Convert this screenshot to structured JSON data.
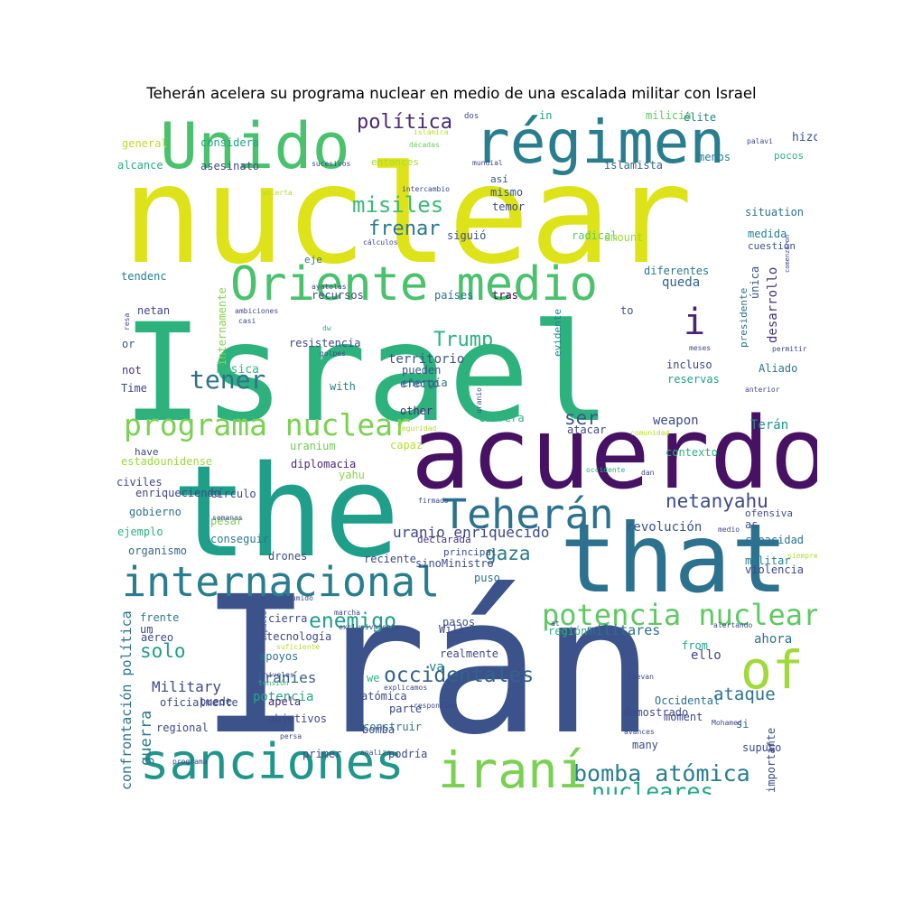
{
  "title": "Teherán acelera su programa nuclear en medio de una escalada militar con Israel",
  "words": [
    {
      "text": "nuclear",
      "color": "#dde318"
    },
    {
      "text": "Israel",
      "color": "#2db27d"
    },
    {
      "text": "Irán",
      "color": "#3b528b"
    },
    {
      "text": "the",
      "color": "#1f9e89"
    },
    {
      "text": "acuerdo",
      "color": "#471164"
    },
    {
      "text": "that",
      "color": "#2c728e"
    },
    {
      "text": "Unido",
      "color": "#4ac16d"
    },
    {
      "text": "régimen",
      "color": "#287d8e"
    },
    {
      "text": "Oriente medio",
      "color": "#4ac16d"
    },
    {
      "text": "sanciones",
      "color": "#1f968b"
    },
    {
      "text": "internacional",
      "color": "#287d8e"
    },
    {
      "text": "iraní",
      "color": "#7ad151"
    },
    {
      "text": "of",
      "color": "#a0da39"
    },
    {
      "text": "programa nuclear",
      "color": "#7ad151"
    },
    {
      "text": "Teherán",
      "color": "#2c728e"
    },
    {
      "text": "potencia nuclear",
      "color": "#5ec962"
    },
    {
      "text": "bomba atómica",
      "color": "#287d8e"
    },
    {
      "text": "nucleares",
      "color": "#21a685"
    },
    {
      "text": "occidentales",
      "color": "#33638d"
    },
    {
      "text": "netanyahu",
      "color": "#3e4a89"
    },
    {
      "text": "política",
      "color": "#482878"
    },
    {
      "text": "misiles",
      "color": "#3aba76"
    },
    {
      "text": "frenar",
      "color": "#2a788e"
    },
    {
      "text": "tener",
      "color": "#2c728e"
    },
    {
      "text": "enemigo",
      "color": "#1f9e89"
    },
    {
      "text": "gaza",
      "color": "#2a788e"
    },
    {
      "text": "ser",
      "color": "#38588c"
    },
    {
      "text": "Trump",
      "color": "#2db27d"
    },
    {
      "text": "solo",
      "color": "#1f9e89"
    },
    {
      "text": "guerra",
      "color": "#2a788e"
    },
    {
      "text": "ataque",
      "color": "#2c728e"
    },
    {
      "text": "uranio enriquecido",
      "color": "#3f4788"
    },
    {
      "text": "i",
      "color": "#482475"
    },
    {
      "text": "territorio",
      "color": "#3b528b"
    },
    {
      "text": "Military",
      "color": "#3e4a89"
    },
    {
      "text": "iraníes",
      "color": "#33638d"
    },
    {
      "text": "potencia",
      "color": "#22a884"
    },
    {
      "text": "confrontación política",
      "color": "#2c728e"
    },
    {
      "text": "revolución",
      "color": "#3b528b"
    },
    {
      "text": "militares",
      "color": "#2d708e"
    },
    {
      "text": "weapon",
      "color": "#3e4a89"
    },
    {
      "text": "va",
      "color": "#25838e"
    },
    {
      "text": "ello",
      "color": "#3e4989"
    },
    {
      "text": "ahora",
      "color": "#2c728e"
    },
    {
      "text": "Terán",
      "color": "#20928c"
    },
    {
      "text": "queda",
      "color": "#33628d"
    },
    {
      "text": "desarrollo",
      "color": "#46337e"
    },
    {
      "text": "internamente",
      "color": "#86d549"
    },
    {
      "text": "Música",
      "color": "#35b779"
    },
    {
      "text": "energía",
      "color": "#2c728e"
    },
    {
      "text": "resistencia",
      "color": "#3e4989"
    },
    {
      "text": "Aliado",
      "color": "#2a788e"
    },
    {
      "text": "recursos",
      "color": "#3e4989"
    },
    {
      "text": "países",
      "color": "#2c728e"
    },
    {
      "text": "tras",
      "color": "#440154"
    },
    {
      "text": "diferentes",
      "color": "#2a788e"
    },
    {
      "text": "menos",
      "color": "#277f8e"
    },
    {
      "text": "hizo",
      "color": "#3b528b"
    },
    {
      "text": "in",
      "color": "#1fa188"
    },
    {
      "text": "milicia",
      "color": "#5ec962"
    },
    {
      "text": "élite",
      "color": "#26828e"
    },
    {
      "text": "considera",
      "color": "#20a386"
    },
    {
      "text": "islamista",
      "color": "#31688e"
    },
    {
      "text": "asesinato",
      "color": "#3e4989"
    },
    {
      "text": "situation",
      "color": "#2c728e"
    },
    {
      "text": "medida",
      "color": "#26828e"
    },
    {
      "text": "cuestión",
      "color": "#3b528b"
    },
    {
      "text": "única",
      "color": "#3b528b"
    },
    {
      "text": "general",
      "color": "#b5de2b"
    },
    {
      "text": "alcance",
      "color": "#29af7f"
    },
    {
      "text": "pocos",
      "color": "#2db27d"
    },
    {
      "text": "entonces",
      "color": "#a5db36"
    },
    {
      "text": "mismo",
      "color": "#38588c"
    },
    {
      "text": "temor",
      "color": "#3e4a89"
    },
    {
      "text": "así",
      "color": "#3b528b"
    },
    {
      "text": "siguió",
      "color": "#3b528b"
    },
    {
      "text": "radical",
      "color": "#5ec962"
    },
    {
      "text": "amount",
      "color": "#9bd93c"
    },
    {
      "text": "eje",
      "color": "#2a788e"
    },
    {
      "text": "tendenc",
      "color": "#277f8e"
    },
    {
      "text": "netan",
      "color": "#3e4989"
    },
    {
      "text": "or",
      "color": "#3b528b"
    },
    {
      "text": "not",
      "color": "#46337e"
    },
    {
      "text": "Time",
      "color": "#3e4a89"
    },
    {
      "text": "with",
      "color": "#26828e"
    },
    {
      "text": "pueden",
      "color": "#3b528b"
    },
    {
      "text": "efecto",
      "color": "#38588c"
    },
    {
      "text": "other",
      "color": "#482878"
    },
    {
      "text": "carrera",
      "color": "#2db27d"
    },
    {
      "text": "atacar",
      "color": "#3e4989"
    },
    {
      "text": "incluso",
      "color": "#3e4989"
    },
    {
      "text": "reservas",
      "color": "#1fa187"
    },
    {
      "text": "to",
      "color": "#3b528b"
    },
    {
      "text": "evidente",
      "color": "#26828e"
    },
    {
      "text": "presidente",
      "color": "#2c728e"
    },
    {
      "text": "have",
      "color": "#3e4989"
    },
    {
      "text": "uranium",
      "color": "#6ccd5a"
    },
    {
      "text": "capaz",
      "color": "#b5de2b"
    },
    {
      "text": "estadounidense",
      "color": "#9bd93c"
    },
    {
      "text": "diplomacia",
      "color": "#482878"
    },
    {
      "text": "yahu",
      "color": "#8bd646"
    },
    {
      "text": "civiles",
      "color": "#3e4989"
    },
    {
      "text": "enriqueciendo",
      "color": "#3e4989"
    },
    {
      "text": "círculo",
      "color": "#3e4a89"
    },
    {
      "text": "gobierno",
      "color": "#2c728e"
    },
    {
      "text": "pesar",
      "color": "#7ad151"
    },
    {
      "text": "ejemplo",
      "color": "#2db27d"
    },
    {
      "text": "conseguir",
      "color": "#2a788e"
    },
    {
      "text": "organismo",
      "color": "#31688e"
    },
    {
      "text": "drones",
      "color": "#3e4989"
    },
    {
      "text": "principal",
      "color": "#3b528b"
    },
    {
      "text": "declarada",
      "color": "#46337e"
    },
    {
      "text": "reciente",
      "color": "#3e4989"
    },
    {
      "text": "sinoMinistro",
      "color": "#3e4989"
    },
    {
      "text": "puso",
      "color": "#2c728e"
    },
    {
      "text": "violencia",
      "color": "#3f4788"
    },
    {
      "text": "militar",
      "color": "#26828e"
    },
    {
      "text": "as",
      "color": "#3b528b"
    },
    {
      "text": "ofensiva",
      "color": "#3b528b"
    },
    {
      "text": "capacidad",
      "color": "#2c728e"
    },
    {
      "text": "contexto",
      "color": "#2db27d"
    },
    {
      "text": "frente",
      "color": "#2a788e"
    },
    {
      "text": "um",
      "color": "#3e4989"
    },
    {
      "text": "cierra",
      "color": "#3e4989"
    },
    {
      "text": "tecnología",
      "color": "#3e4989"
    },
    {
      "text": "Will",
      "color": "#3e4989"
    },
    {
      "text": "pasos",
      "color": "#3b528b"
    },
    {
      "text": "realmente",
      "color": "#3e4989"
    },
    {
      "text": "región",
      "color": "#2db27d"
    },
    {
      "text": "from",
      "color": "#20a386"
    },
    {
      "text": "aéreo",
      "color": "#3e4989"
    },
    {
      "text": "apoyos",
      "color": "#2c728e"
    },
    {
      "text": "oficialmente",
      "color": "#3e4989"
    },
    {
      "text": "puede",
      "color": "#3e4989"
    },
    {
      "text": "regional",
      "color": "#3e4989"
    },
    {
      "text": "apela",
      "color": "#482878"
    },
    {
      "text": "objetivos",
      "color": "#3e4989"
    },
    {
      "text": "we",
      "color": "#2db27d"
    },
    {
      "text": "atómica",
      "color": "#3e4989"
    },
    {
      "text": "bomba",
      "color": "#3e4989"
    },
    {
      "text": "parte",
      "color": "#3e4989"
    },
    {
      "text": "construir",
      "color": "#2c728e"
    },
    {
      "text": "primer",
      "color": "#3e4989"
    },
    {
      "text": "podría",
      "color": "#3e4989"
    },
    {
      "text": "Occidental",
      "color": "#2c728e"
    },
    {
      "text": "demostrado",
      "color": "#3e4989"
    },
    {
      "text": "moment",
      "color": "#3e4989"
    },
    {
      "text": "many",
      "color": "#3e4989"
    },
    {
      "text": "si",
      "color": "#2c728e"
    },
    {
      "text": "supuso",
      "color": "#3e4989"
    },
    {
      "text": "importante",
      "color": "#3e4989"
    },
    {
      "text": "if",
      "color": "#3e4989"
    },
    {
      "text": "dos",
      "color": "#3e4989"
    },
    {
      "text": "islámica",
      "color": "#b5de2b"
    },
    {
      "text": "décadas",
      "color": "#6ccd5a"
    },
    {
      "text": "mundial",
      "color": "#3e4989"
    },
    {
      "text": "sucesivos",
      "color": "#3e4989"
    },
    {
      "text": "intercambio",
      "color": "#3e4989"
    },
    {
      "text": "abierta",
      "color": "#b5de2b"
    },
    {
      "text": "cálculos",
      "color": "#3e4989"
    },
    {
      "text": "palavi",
      "color": "#3e4989"
    },
    {
      "text": "comenzaron",
      "color": "#3e4989"
    },
    {
      "text": "ayatolas",
      "color": "#3e4989"
    },
    {
      "text": "ambiciones",
      "color": "#3e4989"
    },
    {
      "text": "casi",
      "color": "#3e4989"
    },
    {
      "text": "resa",
      "color": "#3e4989"
    },
    {
      "text": "dw",
      "color": "#2db27d"
    },
    {
      "text": "golpes",
      "color": "#3e4989"
    },
    {
      "text": "meses",
      "color": "#3e4989"
    },
    {
      "text": "permitir",
      "color": "#3e4989"
    },
    {
      "text": "anterior",
      "color": "#3e4989"
    },
    {
      "text": "uranio",
      "color": "#3e4989"
    },
    {
      "text": "seguridad",
      "color": "#b5de2b"
    },
    {
      "text": "comunidad",
      "color": "#b5de2b"
    },
    {
      "text": "occidente",
      "color": "#2db27d"
    },
    {
      "text": "dan",
      "color": "#3e4989"
    },
    {
      "text": "firmado",
      "color": "#3e4989"
    },
    {
      "text": "semanas",
      "color": "#3e4989"
    },
    {
      "text": "medio",
      "color": "#3e4989"
    },
    {
      "text": "siempre",
      "color": "#b5de2b"
    },
    {
      "text": "sumido",
      "color": "#3e4989"
    },
    {
      "text": "marcha",
      "color": "#3e4989"
    },
    {
      "text": "exclusivamente",
      "color": "#3e4989"
    },
    {
      "text": "at",
      "color": "#3e4989"
    },
    {
      "text": "alertando",
      "color": "#3e4989"
    },
    {
      "text": "impacto",
      "color": "#3e4989"
    },
    {
      "text": "suficiente",
      "color": "#b5de2b"
    },
    {
      "text": "niveles",
      "color": "#3e4989"
    },
    {
      "text": "tensión",
      "color": "#2db27d"
    },
    {
      "text": "explicamos",
      "color": "#3e4989"
    },
    {
      "text": "respondido",
      "color": "#3e4989"
    },
    {
      "text": "llevan",
      "color": "#3e4989"
    },
    {
      "text": "avances",
      "color": "#3e4989"
    },
    {
      "text": "Mohamed",
      "color": "#3e4989"
    },
    {
      "text": "persa",
      "color": "#3e4989"
    },
    {
      "text": "analiza",
      "color": "#3e4989"
    },
    {
      "text": "programa",
      "color": "#3e4989"
    },
    {
      "text": "sha",
      "color": "#3e4989"
    },
    {
      "text": "convertirse",
      "color": "#2db27d"
    }
  ]
}
